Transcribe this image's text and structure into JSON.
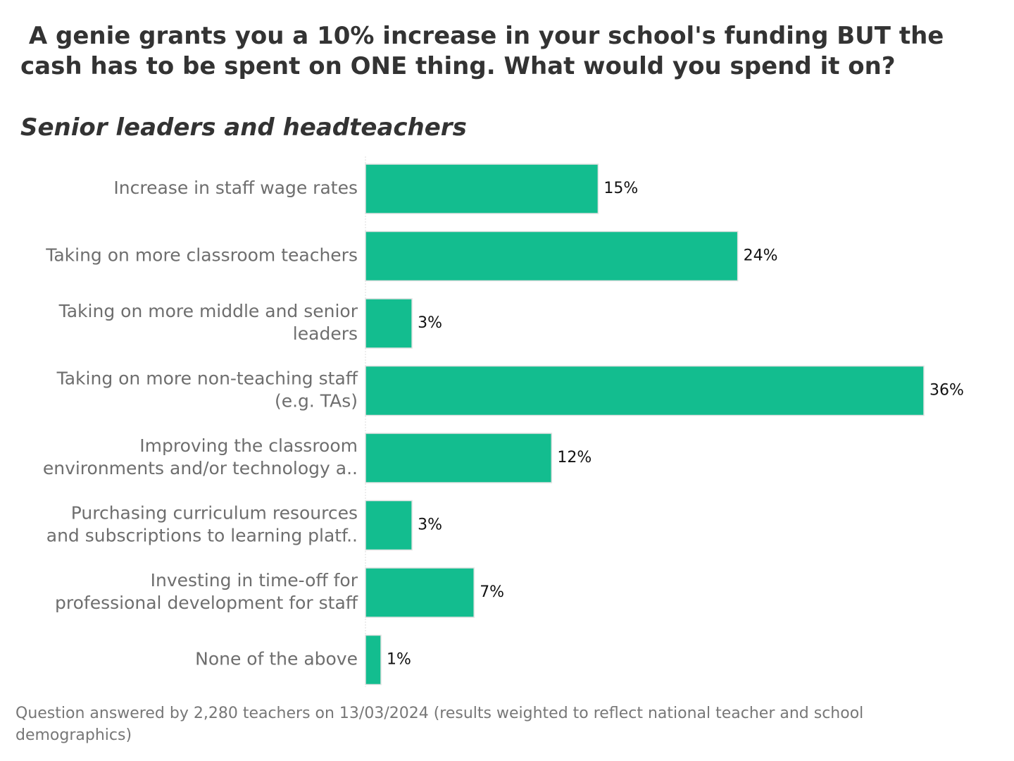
{
  "title": " A genie grants you a 10% increase in your school's funding BUT the cash has to be spent on ONE thing. What would you spend it on?",
  "subtitle": "Senior leaders and headteachers",
  "chart_data": {
    "type": "bar",
    "orientation": "horizontal",
    "categories": [
      [
        "Increase in staff wage rates"
      ],
      [
        "Taking on more classroom teachers"
      ],
      [
        "Taking on more middle and senior",
        "leaders"
      ],
      [
        "Taking on more non-teaching staff",
        "(e.g. TAs)"
      ],
      [
        "Improving the classroom",
        "environments and/or technology a.."
      ],
      [
        "Purchasing curriculum resources",
        "and subscriptions to learning platf.."
      ],
      [
        "Investing in time-off for",
        "professional development for staff"
      ],
      [
        "None of the above"
      ]
    ],
    "values": [
      15,
      24,
      3,
      36,
      12,
      3,
      7,
      1
    ],
    "value_labels": [
      "15%",
      "24%",
      "3%",
      "36%",
      "12%",
      "3%",
      "7%",
      "1%"
    ],
    "unit": "%",
    "bar_color": "#13bd8f",
    "xlim": [
      0,
      36
    ],
    "grid": false
  },
  "footer": "Question answered by 2,280 teachers on 13/03/2024 (results weighted to reflect national teacher and school demographics)"
}
